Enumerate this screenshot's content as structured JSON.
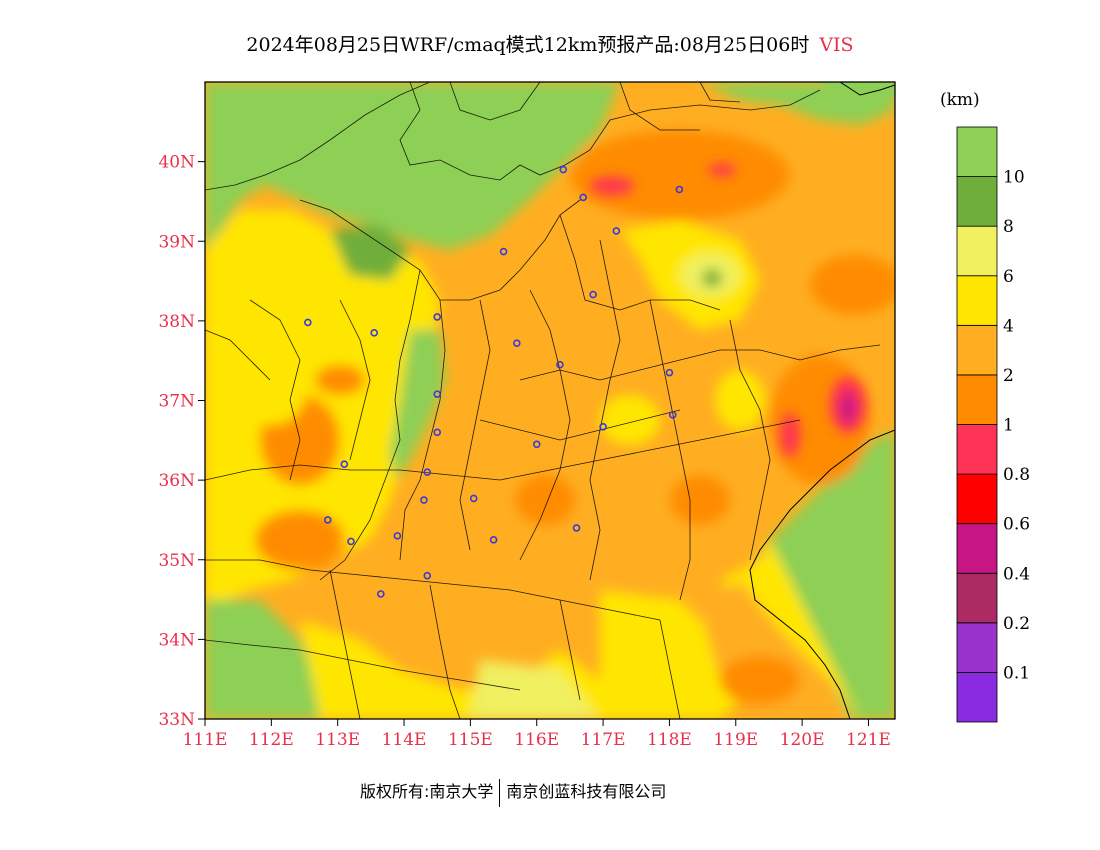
{
  "title": {
    "main": "2024年08月25日WRF/cmaq模式12km预报产品:08月25日06时",
    "variable": "VIS"
  },
  "unit": "(km)",
  "map": {
    "lat_range": [
      33,
      41
    ],
    "lon_range": [
      111,
      121.4
    ],
    "lat_ticks": [
      {
        "value": 33,
        "label": "33N"
      },
      {
        "value": 34,
        "label": "34N"
      },
      {
        "value": 35,
        "label": "35N"
      },
      {
        "value": 36,
        "label": "36N"
      },
      {
        "value": 37,
        "label": "37N"
      },
      {
        "value": 38,
        "label": "38N"
      },
      {
        "value": 39,
        "label": "39N"
      },
      {
        "value": 40,
        "label": "40N"
      }
    ],
    "lon_ticks": [
      {
        "value": 111,
        "label": "111E"
      },
      {
        "value": 112,
        "label": "112E"
      },
      {
        "value": 113,
        "label": "113E"
      },
      {
        "value": 114,
        "label": "114E"
      },
      {
        "value": 115,
        "label": "115E"
      },
      {
        "value": 116,
        "label": "116E"
      },
      {
        "value": 117,
        "label": "117E"
      },
      {
        "value": 118,
        "label": "118E"
      },
      {
        "value": 119,
        "label": "119E"
      },
      {
        "value": 120,
        "label": "120E"
      },
      {
        "value": 121,
        "label": "121E"
      }
    ],
    "stations": [
      {
        "lon": 116.4,
        "lat": 39.9
      },
      {
        "lon": 116.7,
        "lat": 39.55
      },
      {
        "lon": 117.2,
        "lat": 39.13
      },
      {
        "lon": 118.15,
        "lat": 39.65
      },
      {
        "lon": 115.5,
        "lat": 38.87
      },
      {
        "lon": 116.85,
        "lat": 38.33
      },
      {
        "lon": 112.55,
        "lat": 37.98
      },
      {
        "lon": 113.55,
        "lat": 37.85
      },
      {
        "lon": 114.5,
        "lat": 38.05
      },
      {
        "lon": 115.7,
        "lat": 37.72
      },
      {
        "lon": 116.35,
        "lat": 37.45
      },
      {
        "lon": 118.0,
        "lat": 37.35
      },
      {
        "lon": 114.5,
        "lat": 37.08
      },
      {
        "lon": 114.5,
        "lat": 36.6
      },
      {
        "lon": 116.0,
        "lat": 36.45
      },
      {
        "lon": 117.0,
        "lat": 36.67
      },
      {
        "lon": 118.05,
        "lat": 36.82
      },
      {
        "lon": 113.1,
        "lat": 36.2
      },
      {
        "lon": 114.35,
        "lat": 36.1
      },
      {
        "lon": 114.3,
        "lat": 35.75
      },
      {
        "lon": 115.05,
        "lat": 35.77
      },
      {
        "lon": 112.85,
        "lat": 35.5
      },
      {
        "lon": 113.9,
        "lat": 35.3
      },
      {
        "lon": 113.2,
        "lat": 35.23
      },
      {
        "lon": 115.35,
        "lat": 35.25
      },
      {
        "lon": 116.6,
        "lat": 35.4
      },
      {
        "lon": 114.35,
        "lat": 34.8
      },
      {
        "lon": 113.65,
        "lat": 34.57
      }
    ],
    "colors": {
      "frame": "#000000",
      "station": "#3a3ad8"
    }
  },
  "legend": {
    "bins": [
      {
        "color": "#8a2be2",
        "label": "0.1"
      },
      {
        "color": "#9932cc",
        "label": "0.2"
      },
      {
        "color": "#ac2b63",
        "label": "0.4"
      },
      {
        "color": "#c71585",
        "label": "0.6"
      },
      {
        "color": "#ff0000",
        "label": "0.8"
      },
      {
        "color": "#ff3355",
        "label": "1"
      },
      {
        "color": "#ff8c00",
        "label": "2"
      },
      {
        "color": "#ffae21",
        "label": "4"
      },
      {
        "color": "#ffe600",
        "label": "6"
      },
      {
        "color": "#f0f060",
        "label": "8"
      },
      {
        "color": "#6fae3b",
        "label": "10"
      },
      {
        "color": "#8ecf55",
        "label": ""
      }
    ]
  },
  "copyright": {
    "left": "版权所有:南京大学",
    "right": "南京创蓝科技有限公司"
  }
}
